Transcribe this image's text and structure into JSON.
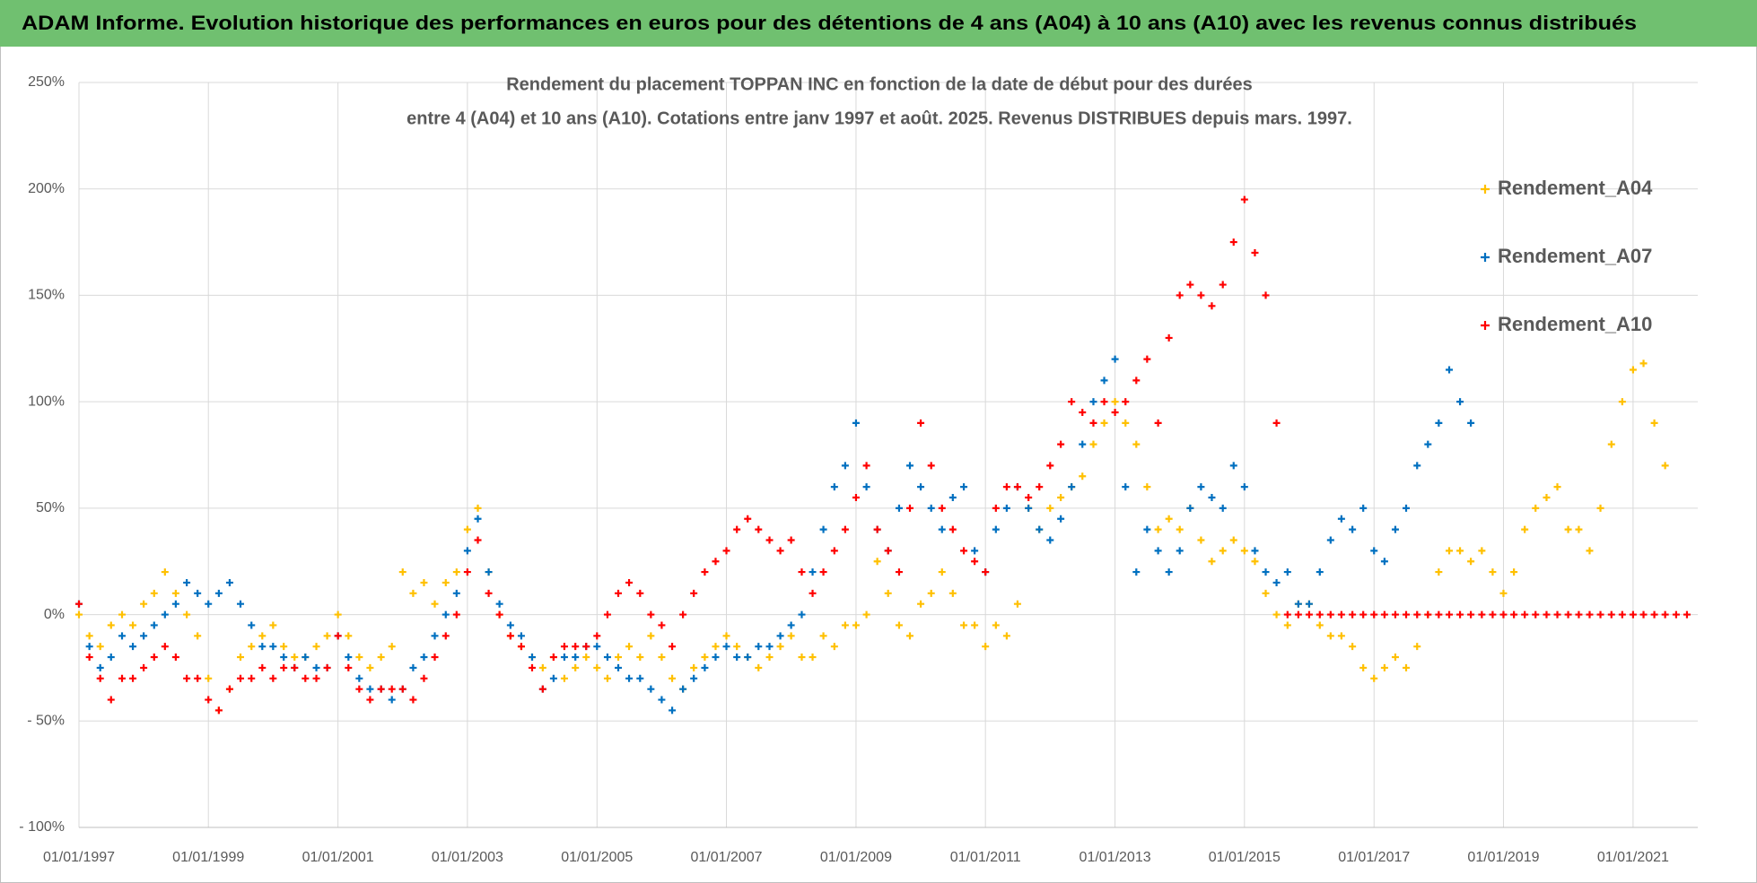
{
  "header": {
    "title": "ADAM Informe. Evolution historique des performances en euros pour des détentions de 4 ans (A04) à 10 ans (A10) avec les revenus connus distribués"
  },
  "chart_data": {
    "type": "scatter",
    "title": "Rendement du placement TOPPAN INC en fonction de la date de début pour des durées",
    "subtitle": "entre 4 (A04) et 10 ans (A10). Cotations entre janv 1997 et août. 2025. Revenus DISTRIBUES depuis mars. 1997.",
    "x": [
      "1997-01-01",
      "1997-03-01",
      "1997-05-01",
      "1997-07-01",
      "1997-09-01",
      "1997-11-01",
      "1998-01-01",
      "1998-03-01",
      "1998-05-01",
      "1998-07-01",
      "1998-09-01",
      "1998-11-01",
      "1999-01-01",
      "1999-03-01",
      "1999-05-01",
      "1999-07-01",
      "1999-09-01",
      "1999-11-01",
      "2000-01-01",
      "2000-03-01",
      "2000-05-01",
      "2000-07-01",
      "2000-09-01",
      "2000-11-01",
      "2001-01-01",
      "2001-03-01",
      "2001-05-01",
      "2001-07-01",
      "2001-09-01",
      "2001-11-01",
      "2002-01-01",
      "2002-03-01",
      "2002-05-01",
      "2002-07-01",
      "2002-09-01",
      "2002-11-01",
      "2003-01-01",
      "2003-03-01",
      "2003-05-01",
      "2003-07-01",
      "2003-09-01",
      "2003-11-01",
      "2004-01-01",
      "2004-03-01",
      "2004-05-01",
      "2004-07-01",
      "2004-09-01",
      "2004-11-01",
      "2005-01-01",
      "2005-03-01",
      "2005-05-01",
      "2005-07-01",
      "2005-09-01",
      "2005-11-01",
      "2006-01-01",
      "2006-03-01",
      "2006-05-01",
      "2006-07-01",
      "2006-09-01",
      "2006-11-01",
      "2007-01-01",
      "2007-03-01",
      "2007-05-01",
      "2007-07-01",
      "2007-09-01",
      "2007-11-01",
      "2008-01-01",
      "2008-03-01",
      "2008-05-01",
      "2008-07-01",
      "2008-09-01",
      "2008-11-01",
      "2009-01-01",
      "2009-03-01",
      "2009-05-01",
      "2009-07-01",
      "2009-09-01",
      "2009-11-01",
      "2010-01-01",
      "2010-03-01",
      "2010-05-01",
      "2010-07-01",
      "2010-09-01",
      "2010-11-01",
      "2011-01-01",
      "2011-03-01",
      "2011-05-01",
      "2011-07-01",
      "2011-09-01",
      "2011-11-01",
      "2012-01-01",
      "2012-03-01",
      "2012-05-01",
      "2012-07-01",
      "2012-09-01",
      "2012-11-01",
      "2013-01-01",
      "2013-03-01",
      "2013-05-01",
      "2013-07-01",
      "2013-09-01",
      "2013-11-01",
      "2014-01-01",
      "2014-03-01",
      "2014-05-01",
      "2014-07-01",
      "2014-09-01",
      "2014-11-01",
      "2015-01-01",
      "2015-03-01",
      "2015-05-01",
      "2015-07-01",
      "2015-09-01",
      "2015-11-01",
      "2016-01-01",
      "2016-03-01",
      "2016-05-01",
      "2016-07-01",
      "2016-09-01",
      "2016-11-01",
      "2017-01-01",
      "2017-03-01",
      "2017-05-01",
      "2017-07-01",
      "2017-09-01",
      "2017-11-01",
      "2018-01-01",
      "2018-03-01",
      "2018-05-01",
      "2018-07-01",
      "2018-09-01",
      "2018-11-01",
      "2019-01-01",
      "2019-03-01",
      "2019-05-01",
      "2019-07-01",
      "2019-09-01",
      "2019-11-01",
      "2020-01-01",
      "2020-03-01",
      "2020-05-01",
      "2020-07-01",
      "2020-09-01",
      "2020-11-01",
      "2021-01-01",
      "2021-03-01",
      "2021-05-01",
      "2021-07-01",
      "2021-09-01",
      "2021-11-01"
    ],
    "series": [
      {
        "name": "Rendement_A04",
        "color": "#ffc000",
        "values": [
          0,
          -10,
          -15,
          -5,
          0,
          -5,
          5,
          10,
          20,
          10,
          0,
          -10,
          -30,
          -45,
          -35,
          -20,
          -15,
          -10,
          -5,
          -15,
          -20,
          -20,
          -15,
          -10,
          0,
          -10,
          -20,
          -25,
          -20,
          -15,
          20,
          10,
          15,
          5,
          15,
          20,
          40,
          50,
          20,
          0,
          -10,
          -15,
          -20,
          -25,
          -20,
          -30,
          -25,
          -20,
          -25,
          -30,
          -20,
          -15,
          -20,
          -10,
          -20,
          -30,
          -35,
          -25,
          -20,
          -15,
          -10,
          -15,
          -20,
          -25,
          -20,
          -15,
          -10,
          -20,
          -20,
          -10,
          -15,
          -5,
          -5,
          0,
          25,
          10,
          -5,
          -10,
          5,
          10,
          20,
          10,
          -5,
          -5,
          -15,
          -5,
          -10,
          5,
          50,
          40,
          50,
          55,
          60,
          65,
          80,
          90,
          100,
          90,
          80,
          60,
          40,
          45,
          40,
          50,
          35,
          25,
          30,
          35,
          30,
          25,
          10,
          0,
          -5,
          5,
          5,
          -5,
          -10,
          -10,
          -15,
          -25,
          -30,
          -25,
          -20,
          -25,
          -15,
          0,
          20,
          30,
          30,
          25,
          30,
          20,
          10,
          20,
          40,
          50,
          55,
          60,
          40,
          40,
          30,
          50,
          80,
          100,
          115,
          118,
          90,
          70,
          null,
          null
        ]
      },
      {
        "name": "Rendement_A07",
        "color": "#0070c0",
        "values": [
          5,
          -15,
          -25,
          -20,
          -10,
          -15,
          -10,
          -5,
          0,
          5,
          15,
          10,
          5,
          10,
          15,
          5,
          -5,
          -15,
          -15,
          -20,
          -25,
          -20,
          -25,
          -25,
          -10,
          -20,
          -30,
          -35,
          -35,
          -40,
          -35,
          -25,
          -20,
          -10,
          0,
          10,
          30,
          45,
          20,
          5,
          -5,
          -10,
          -20,
          -35,
          -30,
          -20,
          -20,
          -15,
          -15,
          -20,
          -25,
          -30,
          -30,
          -35,
          -40,
          -45,
          -35,
          -30,
          -25,
          -20,
          -15,
          -20,
          -20,
          -15,
          -15,
          -10,
          -5,
          0,
          20,
          40,
          60,
          70,
          90,
          60,
          40,
          30,
          50,
          70,
          60,
          50,
          40,
          55,
          60,
          30,
          20,
          40,
          50,
          60,
          50,
          40,
          35,
          45,
          60,
          80,
          100,
          110,
          120,
          60,
          20,
          40,
          30,
          20,
          30,
          50,
          60,
          55,
          50,
          70,
          60,
          30,
          20,
          15,
          20,
          5,
          5,
          20,
          35,
          45,
          40,
          50,
          30,
          25,
          40,
          50,
          70,
          80,
          90,
          115,
          100,
          90,
          null,
          null,
          null,
          null,
          null,
          null,
          null,
          null,
          null,
          null,
          null,
          null,
          null,
          null,
          null,
          null,
          null,
          null,
          null,
          null
        ]
      },
      {
        "name": "Rendement_A10",
        "color": "#ff0000",
        "values": [
          5,
          -20,
          -30,
          -40,
          -30,
          -30,
          -25,
          -20,
          -15,
          -20,
          -30,
          -30,
          -40,
          -45,
          -35,
          -30,
          -30,
          -25,
          -30,
          -25,
          -25,
          -30,
          -30,
          -25,
          -10,
          -25,
          -35,
          -40,
          -35,
          -35,
          -35,
          -40,
          -30,
          -20,
          -10,
          0,
          20,
          35,
          10,
          0,
          -10,
          -15,
          -25,
          -35,
          -20,
          -15,
          -15,
          -15,
          -10,
          0,
          10,
          15,
          10,
          0,
          -5,
          -15,
          0,
          10,
          20,
          25,
          30,
          40,
          45,
          40,
          35,
          30,
          35,
          20,
          10,
          20,
          30,
          40,
          55,
          70,
          40,
          30,
          20,
          50,
          90,
          70,
          50,
          40,
          30,
          25,
          20,
          50,
          60,
          60,
          55,
          60,
          70,
          80,
          100,
          95,
          90,
          100,
          95,
          100,
          110,
          120,
          90,
          130,
          150,
          155,
          150,
          145,
          155,
          175,
          195,
          170,
          150,
          90,
          0,
          0,
          0,
          0,
          0,
          0,
          0,
          0,
          0,
          0,
          0,
          0,
          0,
          0,
          0,
          0,
          0,
          0,
          0,
          0,
          0,
          0,
          0,
          0,
          0,
          0,
          0,
          0,
          0,
          0,
          0,
          0,
          0,
          0,
          0,
          0,
          0,
          0
        ]
      }
    ],
    "xlim": [
      "1997-01-01",
      "2022-01-01"
    ],
    "xticks": [
      {
        "value": "1997-01-01",
        "label": "01/01/1997"
      },
      {
        "value": "1999-01-01",
        "label": "01/01/1999"
      },
      {
        "value": "2001-01-01",
        "label": "01/01/2001"
      },
      {
        "value": "2003-01-01",
        "label": "01/01/2003"
      },
      {
        "value": "2005-01-01",
        "label": "01/01/2005"
      },
      {
        "value": "2007-01-01",
        "label": "01/01/2007"
      },
      {
        "value": "2009-01-01",
        "label": "01/01/2009"
      },
      {
        "value": "2011-01-01",
        "label": "01/01/2011"
      },
      {
        "value": "2013-01-01",
        "label": "01/01/2013"
      },
      {
        "value": "2015-01-01",
        "label": "01/01/2015"
      },
      {
        "value": "2017-01-01",
        "label": "01/01/2017"
      },
      {
        "value": "2019-01-01",
        "label": "01/01/2019"
      },
      {
        "value": "2021-01-01",
        "label": "01/01/2021"
      }
    ],
    "ylim": [
      -100,
      250
    ],
    "yticks": [
      {
        "value": -100,
        "label": "- 100%"
      },
      {
        "value": -50,
        "label": "- 50%"
      },
      {
        "value": 0,
        "label": "0%"
      },
      {
        "value": 50,
        "label": "50%"
      },
      {
        "value": 100,
        "label": "100%"
      },
      {
        "value": 150,
        "label": "150%"
      },
      {
        "value": 200,
        "label": "200%"
      },
      {
        "value": 250,
        "label": "250%"
      }
    ],
    "grid": true,
    "legend": "upper right"
  }
}
